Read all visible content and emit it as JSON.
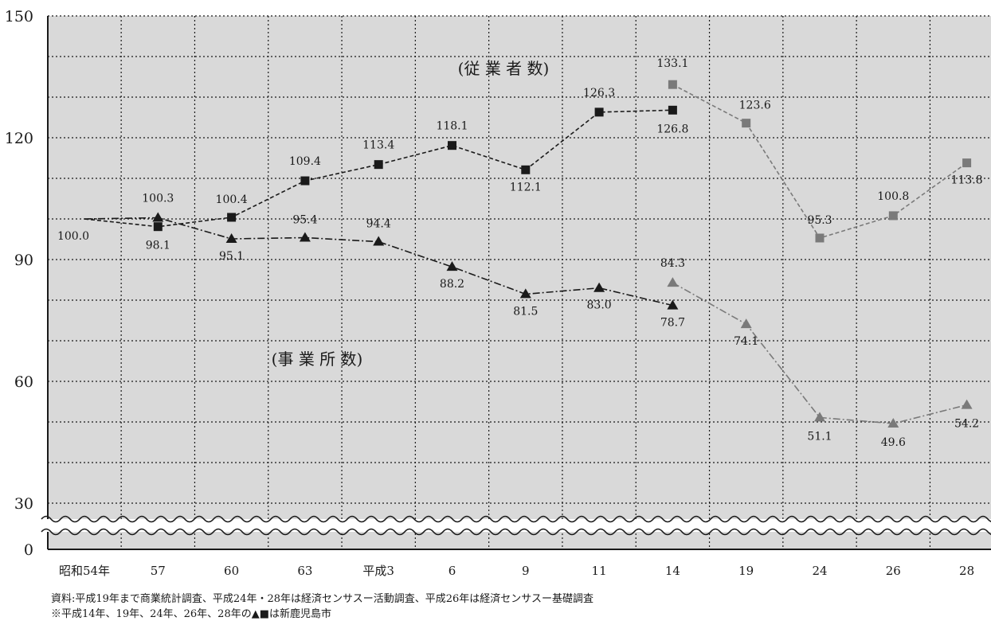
{
  "chart_data": {
    "type": "line",
    "categories": [
      "昭和54年",
      "57",
      "60",
      "63",
      "平成3",
      "6",
      "9",
      "11",
      "14",
      "19",
      "24",
      "26",
      "28"
    ],
    "y_axis": {
      "ticks": [
        0,
        30,
        60,
        90,
        120,
        150
      ],
      "axis_break": true,
      "grid": true
    },
    "series_labels": {
      "employees": "(従 業 者 数)",
      "establishments": "(事 業 所 数)"
    },
    "series": [
      {
        "key": "employees_old",
        "values": [
          100.0,
          98.1,
          100.4,
          109.4,
          113.4,
          118.1,
          112.1,
          126.3,
          126.8,
          null,
          null,
          null,
          null
        ],
        "labels": [
          "100.0",
          "98.1",
          "100.4",
          "109.4",
          "113.4",
          "118.1",
          "112.1",
          "126.3",
          "126.8",
          null,
          null,
          null,
          null
        ],
        "marker": "square",
        "color": "#1a1a1a",
        "line": "dashed"
      },
      {
        "key": "employees_new",
        "values": [
          null,
          null,
          null,
          null,
          null,
          null,
          null,
          null,
          133.1,
          123.6,
          95.3,
          100.8,
          113.8
        ],
        "labels": [
          null,
          null,
          null,
          null,
          null,
          null,
          null,
          null,
          "133.1",
          "123.6",
          "95.3",
          "100.8",
          "113.8"
        ],
        "marker": "square",
        "color": "#7a7a7a",
        "line": "dashed"
      },
      {
        "key": "establishments_old",
        "values": [
          100.0,
          100.3,
          95.1,
          95.4,
          94.4,
          88.2,
          81.5,
          83.0,
          78.7,
          null,
          null,
          null,
          null
        ],
        "labels": [
          null,
          "100.3",
          "95.1",
          "95.4",
          "94.4",
          "88.2",
          "81.5",
          "83.0",
          "78.7",
          null,
          null,
          null,
          null
        ],
        "marker": "triangle",
        "color": "#1a1a1a",
        "line": "dashdot"
      },
      {
        "key": "establishments_new",
        "values": [
          null,
          null,
          null,
          null,
          null,
          null,
          null,
          null,
          84.3,
          74.1,
          51.1,
          49.6,
          54.2
        ],
        "labels": [
          null,
          null,
          null,
          null,
          null,
          null,
          null,
          null,
          "84.3",
          "74.1",
          "51.1",
          "49.6",
          "54.2"
        ],
        "marker": "triangle",
        "color": "#7a7a7a",
        "line": "dashdot"
      }
    ]
  },
  "notes": {
    "source": "資料:平成19年まで商業統計調査、平成24年・28年は経済センサスー活動調査、平成26年は経済センサスー基礎調査",
    "note": "※平成14年、19年、24年、26年、28年の▲■は新鹿児島市"
  },
  "colors": {
    "plot_bg": "#d9d9d9",
    "old_series": "#1a1a1a",
    "new_series": "#7a7a7a",
    "grid": "#1a1a1a"
  }
}
